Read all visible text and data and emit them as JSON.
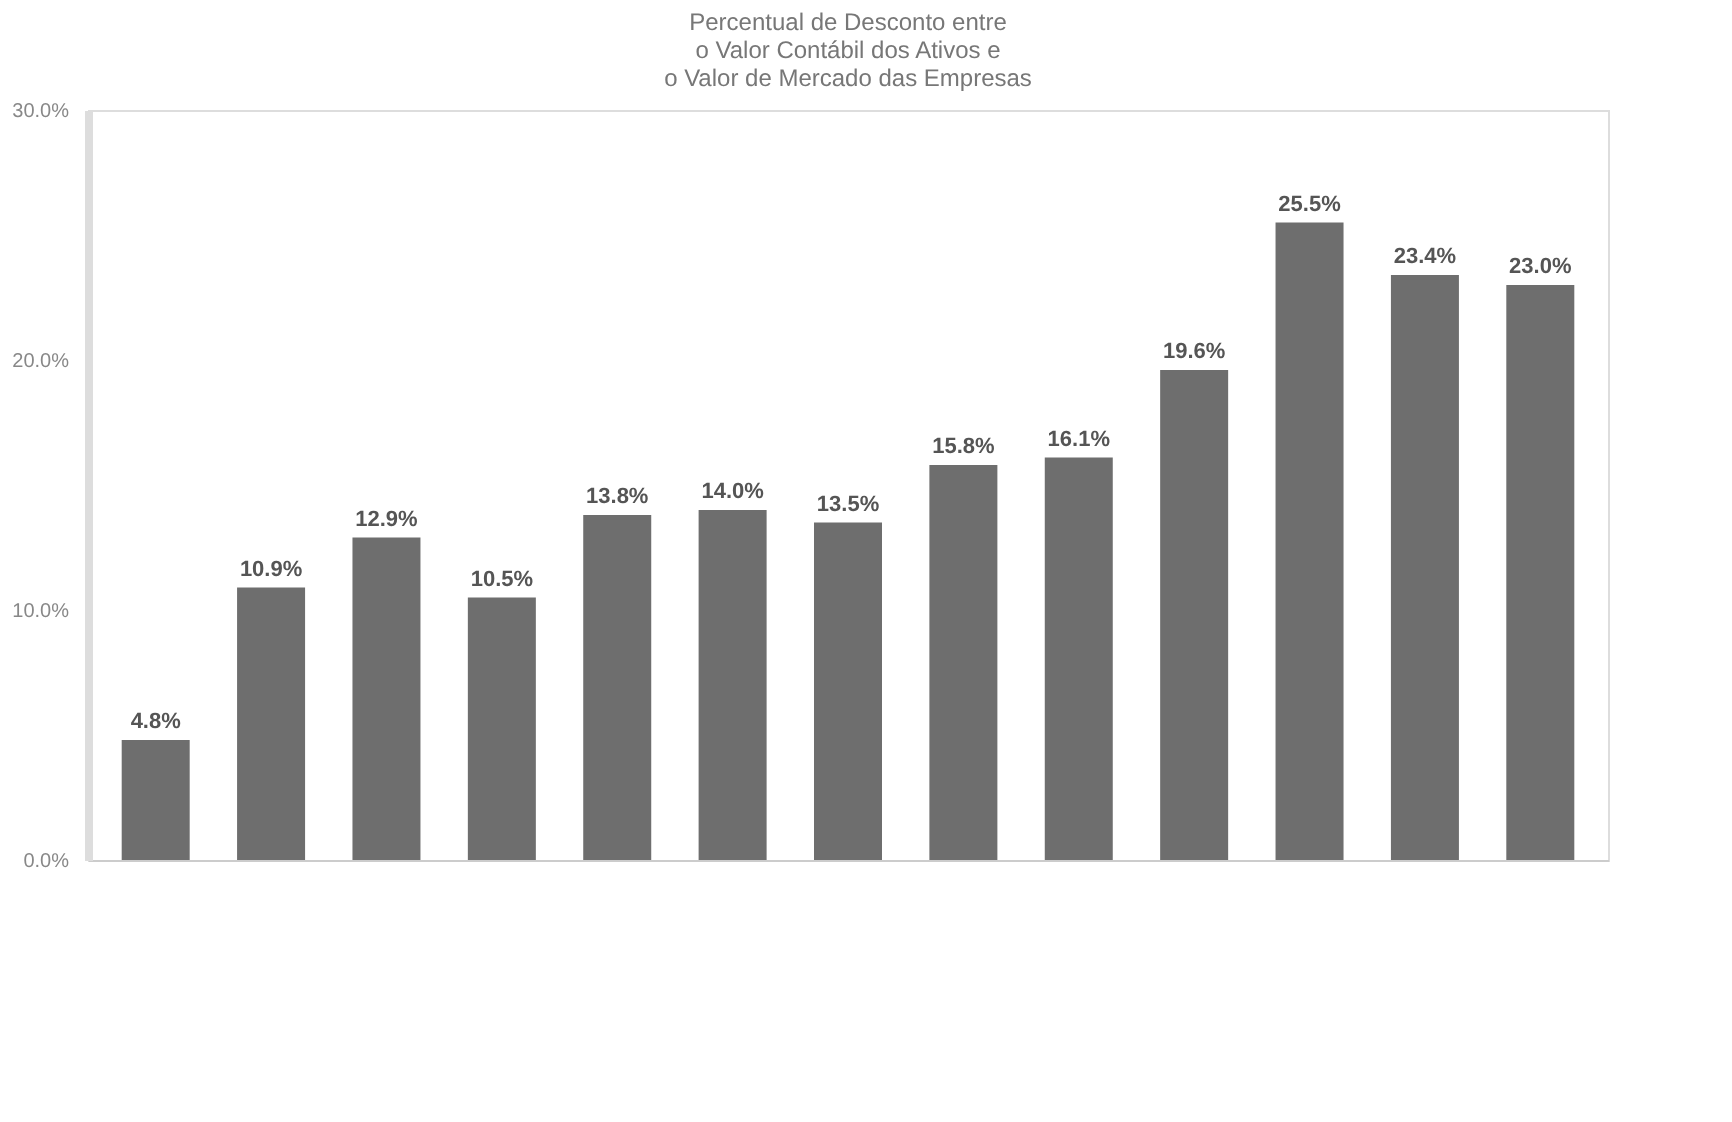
{
  "chart_data": {
    "type": "bar",
    "title": [
      "Percentual de Desconto entre",
      "o Valor Contábil dos Ativos e",
      "o Valor de Mercado das Empresas"
    ],
    "categories": [
      null,
      null,
      null,
      null,
      null,
      null,
      null,
      null,
      null,
      null,
      null,
      null,
      null
    ],
    "values": [
      4.8,
      10.9,
      12.9,
      10.5,
      13.8,
      14.0,
      13.5,
      15.8,
      16.1,
      19.6,
      25.5,
      23.4,
      23.0
    ],
    "value_labels": [
      "4.8%",
      "10.9%",
      "12.9%",
      "10.5%",
      "13.8%",
      "14.0%",
      "13.5%",
      "15.8%",
      "16.1%",
      "19.6%",
      "25.5%",
      "23.4%",
      "23.0%"
    ],
    "color": "#6e6e6e",
    "ylim": [
      0,
      30
    ],
    "yticks": [
      {
        "value": 0,
        "label": "0.0%"
      },
      {
        "value": 10,
        "label": "10.0%"
      },
      {
        "value": 20,
        "label": "20.0%"
      },
      {
        "value": 30,
        "label": "30.0%"
      }
    ],
    "grid": false
  }
}
